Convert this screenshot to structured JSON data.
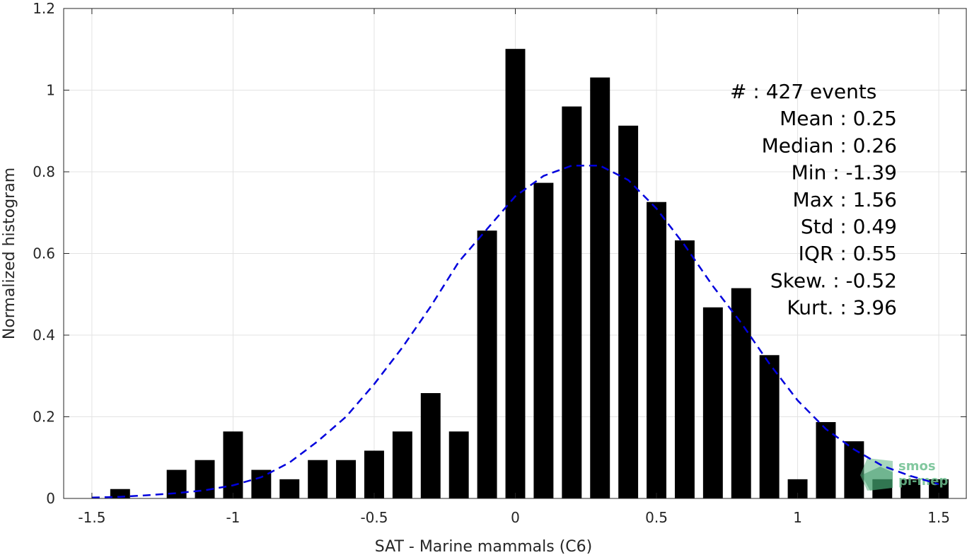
{
  "chart_data": {
    "type": "bar",
    "xlabel": "SAT - Marine mammals (C6)",
    "ylabel": "Normalized histogram",
    "xlim": [
      -1.6,
      1.6
    ],
    "ylim": [
      0,
      1.2
    ],
    "xticks": [
      -1.5,
      -1,
      -0.5,
      0,
      0.5,
      1,
      1.5
    ],
    "xtick_labels": [
      "-1.5",
      "-1",
      "-0.5",
      "0",
      "0.5",
      "1",
      "1.5"
    ],
    "yticks": [
      0,
      0.2,
      0.4,
      0.6,
      0.8,
      1,
      1.2
    ],
    "ytick_labels": [
      "0",
      "0.2",
      "0.4",
      "0.6",
      "0.8",
      "1",
      "1.2"
    ],
    "grid": true,
    "bin_width": 0.1,
    "bar_color": "#000000",
    "bins": {
      "x": [
        -1.4,
        -1.3,
        -1.2,
        -1.1,
        -1.0,
        -0.9,
        -0.8,
        -0.7,
        -0.6,
        -0.5,
        -0.4,
        -0.3,
        -0.2,
        -0.1,
        0.0,
        0.1,
        0.2,
        0.3,
        0.4,
        0.5,
        0.6,
        0.7,
        0.8,
        0.9,
        1.0,
        1.1,
        1.2,
        1.3,
        1.4,
        1.5
      ],
      "values": [
        0.023,
        0,
        0.07,
        0.094,
        0.164,
        0.07,
        0.047,
        0.094,
        0.094,
        0.117,
        0.164,
        0.258,
        0.164,
        0.656,
        1.101,
        0.773,
        0.96,
        1.031,
        0.913,
        0.726,
        0.632,
        0.468,
        0.515,
        0.351,
        0.047,
        0.187,
        0.14,
        0.047,
        0.047,
        0.047
      ]
    },
    "fit_curve": {
      "style": "dashed",
      "color": "#0000dd",
      "x": [
        -1.5,
        -1.4,
        -1.3,
        -1.2,
        -1.1,
        -1.0,
        -0.9,
        -0.8,
        -0.7,
        -0.6,
        -0.5,
        -0.4,
        -0.3,
        -0.2,
        -0.1,
        0.0,
        0.1,
        0.2,
        0.3,
        0.4,
        0.5,
        0.6,
        0.7,
        0.8,
        0.9,
        1.0,
        1.1,
        1.2,
        1.3,
        1.4,
        1.5
      ],
      "values": [
        0.002,
        0.004,
        0.008,
        0.013,
        0.02,
        0.032,
        0.052,
        0.088,
        0.14,
        0.2,
        0.28,
        0.37,
        0.47,
        0.58,
        0.66,
        0.74,
        0.79,
        0.815,
        0.815,
        0.78,
        0.71,
        0.62,
        0.52,
        0.43,
        0.33,
        0.24,
        0.17,
        0.12,
        0.08,
        0.055,
        0.035
      ]
    },
    "annotations": [
      {
        "label": "#",
        "sep": " : ",
        "value": "427 events"
      },
      {
        "label": "Mean",
        "sep": " : ",
        "value": "0.25"
      },
      {
        "label": "Median",
        "sep": " : ",
        "value": "0.26"
      },
      {
        "label": "Min",
        "sep": " : ",
        "value": "-1.39"
      },
      {
        "label": "Max",
        "sep": " : ",
        "value": "1.56"
      },
      {
        "label": "Std",
        "sep": " : ",
        "value": "0.49"
      },
      {
        "label": "IQR",
        "sep": " : ",
        "value": "0.55"
      },
      {
        "label": "Skew.",
        "sep": " : ",
        "value": "-0.52"
      },
      {
        "label": "Kurt.",
        "sep": " : ",
        "value": "3.96"
      }
    ]
  },
  "logo": {
    "line1": "smos",
    "line2": "pi-mep",
    "color": "#6dbf8f"
  }
}
